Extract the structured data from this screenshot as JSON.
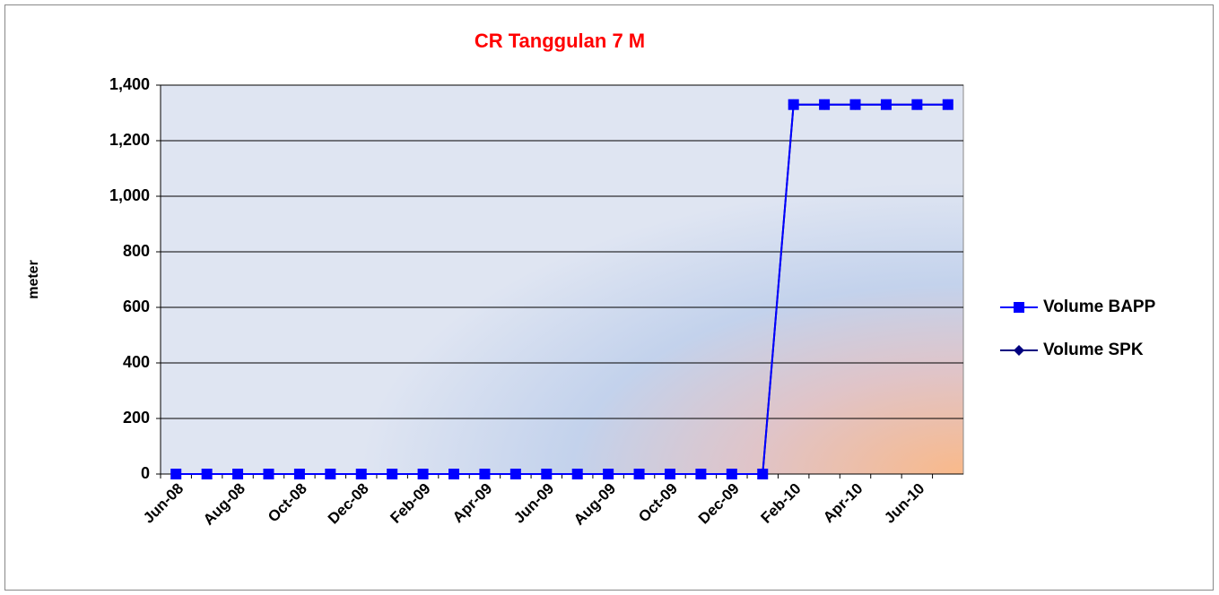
{
  "chart_data": {
    "type": "line",
    "title": "CR Tanggulan 7 M",
    "y_label": "meter",
    "categories": [
      "Jun-08",
      null,
      "Aug-08",
      null,
      "Oct-08",
      null,
      "Dec-08",
      null,
      "Feb-09",
      null,
      "Apr-09",
      null,
      "Jun-09",
      null,
      "Aug-09",
      null,
      "Oct-09",
      null,
      "Dec-09",
      null,
      "Feb-10",
      null,
      "Apr-10",
      null,
      "Jun-10",
      null
    ],
    "series": [
      {
        "name": "Volume BAPP",
        "color": "#0000ff",
        "marker": "square",
        "values": [
          0,
          0,
          0,
          0,
          0,
          0,
          0,
          0,
          0,
          0,
          0,
          0,
          0,
          0,
          0,
          0,
          0,
          0,
          0,
          0,
          1330,
          1330,
          1330,
          1330,
          1330,
          1330
        ]
      },
      {
        "name": "Volume SPK",
        "color": "#000080",
        "marker": "diamond",
        "values": [
          0,
          0,
          0,
          0,
          0,
          0,
          0,
          0,
          0,
          0,
          0,
          0,
          0,
          0,
          0,
          0,
          0,
          0,
          0,
          0,
          1330,
          1330,
          1330,
          1330,
          1330,
          1330
        ]
      }
    ],
    "ylim": [
      0,
      1400
    ],
    "yticks": [
      0,
      200,
      400,
      600,
      800,
      {
        "value": 1000,
        "label": "1,000"
      },
      {
        "value": 1200,
        "label": "1,200"
      },
      {
        "value": 1400,
        "label": "1,400"
      }
    ],
    "grid": true,
    "legend": "right"
  }
}
